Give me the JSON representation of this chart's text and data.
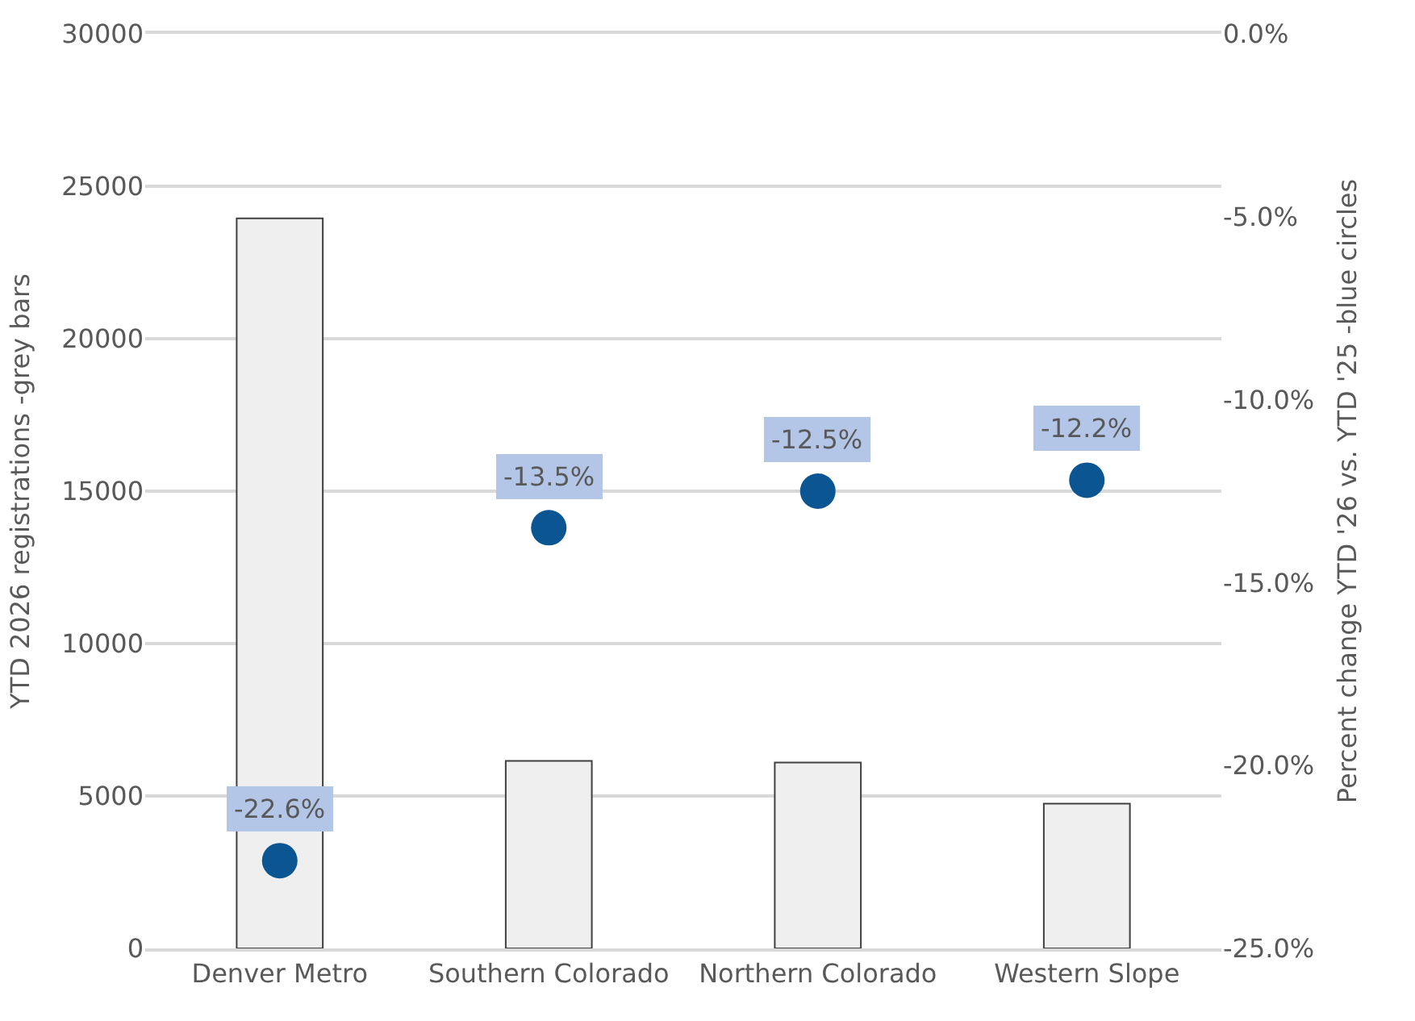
{
  "chart_data": {
    "type": "bar",
    "categories": [
      "Denver Metro",
      "Southern Colorado",
      "Northern Colorado",
      "Western Slope"
    ],
    "ylabel": "YTD 2026 registrations -grey bars",
    "y2label": "Percent change YTD '26 vs. YTD '25 -blue circles",
    "ylim": [
      0,
      30000
    ],
    "yticks": [
      0,
      5000,
      10000,
      15000,
      20000,
      25000,
      30000
    ],
    "y2lim": [
      -25,
      0
    ],
    "y2ticks": [
      {
        "value": -25,
        "label": "-25.0%"
      },
      {
        "value": -20,
        "label": "-20.0%"
      },
      {
        "value": -15,
        "label": "-15.0%"
      },
      {
        "value": -10,
        "label": "-10.0%"
      },
      {
        "value": -5,
        "label": "-5.0%"
      },
      {
        "value": 0,
        "label": "0.0%"
      }
    ],
    "grid": "y",
    "series": [
      {
        "color": "#efefef",
        "values": [
          23950,
          6150,
          6100,
          4750
        ]
      },
      {
        "type": "scatter",
        "axis": "y2",
        "color": "#0b5592",
        "marker": "circle",
        "values": [
          -22.6,
          -13.5,
          -12.5,
          -12.2
        ],
        "value_labels": [
          "-22.6%",
          "-13.5%",
          "-12.5%",
          "-12.2%"
        ]
      }
    ]
  }
}
